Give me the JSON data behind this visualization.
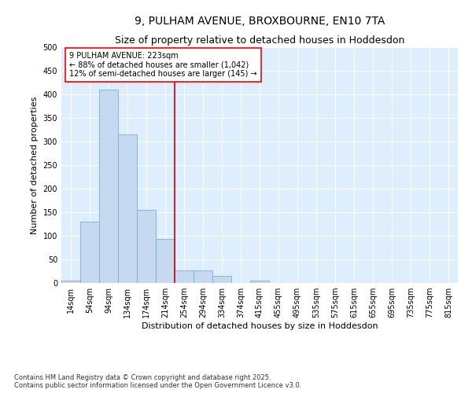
{
  "title_line1": "9, PULHAM AVENUE, BROXBOURNE, EN10 7TA",
  "title_line2": "Size of property relative to detached houses in Hoddesdon",
  "xlabel": "Distribution of detached houses by size in Hoddesdon",
  "ylabel": "Number of detached properties",
  "categories": [
    "14sqm",
    "54sqm",
    "94sqm",
    "134sqm",
    "174sqm",
    "214sqm",
    "254sqm",
    "294sqm",
    "334sqm",
    "374sqm",
    "415sqm",
    "455sqm",
    "495sqm",
    "535sqm",
    "575sqm",
    "615sqm",
    "655sqm",
    "695sqm",
    "735sqm",
    "775sqm",
    "815sqm"
  ],
  "values": [
    5,
    130,
    410,
    315,
    155,
    93,
    27,
    27,
    15,
    0,
    5,
    0,
    0,
    0,
    0,
    0,
    0,
    0,
    0,
    0,
    0
  ],
  "bar_color": "#c5d9f0",
  "bar_edge_color": "#7bafd4",
  "background_color": "#ddeeff",
  "grid_color": "#ffffff",
  "vline_x": 5.5,
  "vline_color": "#cc0000",
  "annotation_text": "9 PULHAM AVENUE: 223sqm\n← 88% of detached houses are smaller (1,042)\n12% of semi-detached houses are larger (145) →",
  "ylim": [
    0,
    500
  ],
  "yticks": [
    0,
    50,
    100,
    150,
    200,
    250,
    300,
    350,
    400,
    450,
    500
  ],
  "footnote": "Contains HM Land Registry data © Crown copyright and database right 2025.\nContains public sector information licensed under the Open Government Licence v3.0.",
  "title_fontsize": 10,
  "subtitle_fontsize": 9,
  "axis_label_fontsize": 8,
  "tick_fontsize": 7,
  "annotation_fontsize": 7,
  "footnote_fontsize": 6
}
